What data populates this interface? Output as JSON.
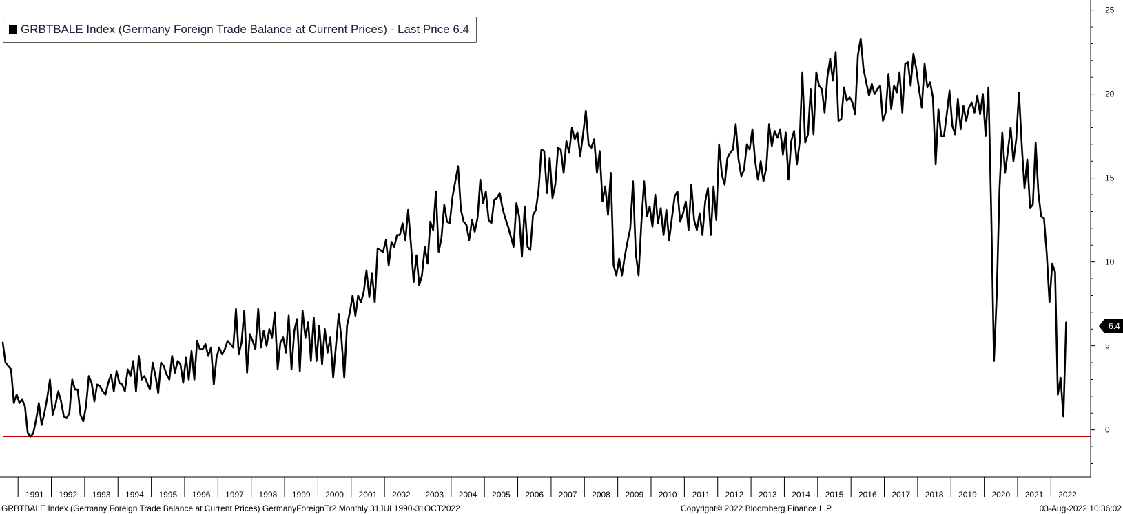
{
  "legend": {
    "label": "GRBTBALE Index (Germany Foreign Trade Balance at Current Prices) - Last Price 6.4",
    "color": "#000000"
  },
  "last_price_tag": "6.4",
  "footer": {
    "left": "GRBTBALE Index (Germany Foreign Trade Balance at Current Prices) GermanyForeignTr2  Monthly 31JUL1990-31OCT2022",
    "center": "Copyright© 2022 Bloomberg Finance L.P.",
    "right": "03-Aug-2022 10:36:02"
  },
  "chart_data": {
    "type": "line",
    "x_start": "1990-07",
    "frequency": "monthly",
    "ylim": [
      -2.8,
      25.6
    ],
    "yticks": [
      0,
      5,
      10,
      15,
      20,
      25
    ],
    "ytick_labels": [
      "0",
      "5",
      "10",
      "15",
      "20",
      "25"
    ],
    "xtick_labels": [
      "1991",
      "1992",
      "1993",
      "1994",
      "1995",
      "1996",
      "1997",
      "1998",
      "1999",
      "2000",
      "2001",
      "2002",
      "2003",
      "2004",
      "2005",
      "2006",
      "2007",
      "2008",
      "2009",
      "2010",
      "2011",
      "2012",
      "2013",
      "2014",
      "2015",
      "2016",
      "2017",
      "2018",
      "2019",
      "2020",
      "2021",
      "2022"
    ],
    "reference_line": {
      "y": -0.4,
      "color": "#c00000"
    },
    "series": [
      {
        "color": "#000000",
        "values": [
          5.2,
          4.0,
          3.8,
          3.6,
          1.6,
          2.1,
          1.6,
          1.8,
          1.4,
          -0.2,
          -0.4,
          -0.2,
          0.6,
          1.6,
          0.3,
          1.0,
          1.9,
          3.0,
          0.9,
          1.5,
          2.3,
          1.7,
          0.8,
          0.7,
          1.0,
          3.0,
          2.4,
          2.4,
          0.9,
          0.5,
          1.4,
          3.2,
          2.8,
          1.7,
          2.7,
          2.6,
          2.3,
          2.1,
          2.8,
          3.3,
          2.3,
          3.5,
          2.8,
          2.7,
          2.3,
          3.6,
          3.2,
          4.1,
          2.3,
          4.4,
          3.0,
          3.2,
          2.8,
          2.4,
          4.0,
          3.2,
          2.2,
          4.0,
          3.8,
          3.3,
          3.0,
          4.4,
          3.4,
          4.1,
          3.9,
          2.8,
          4.3,
          3.0,
          4.7,
          3.0,
          5.3,
          4.8,
          4.8,
          5.1,
          4.4,
          4.9,
          2.7,
          4.3,
          4.9,
          4.5,
          4.8,
          5.3,
          5.1,
          4.9,
          7.2,
          4.5,
          5.2,
          7.1,
          3.4,
          5.7,
          5.3,
          4.8,
          7.2,
          4.9,
          5.9,
          5.0,
          6.0,
          5.5,
          7.0,
          3.6,
          5.2,
          5.5,
          4.6,
          6.8,
          3.6,
          5.9,
          6.6,
          3.5,
          7.1,
          5.5,
          6.4,
          4.1,
          6.7,
          4.1,
          6.2,
          3.9,
          6.0,
          4.6,
          5.5,
          3.1,
          5.0,
          6.9,
          5.4,
          3.1,
          6.2,
          7.0,
          8.0,
          6.8,
          8.0,
          7.6,
          8.2,
          9.5,
          7.9,
          9.3,
          7.6,
          10.8,
          10.7,
          10.6,
          11.3,
          9.8,
          11.2,
          10.9,
          11.6,
          11.6,
          12.3,
          11.3,
          13.1,
          11.1,
          8.8,
          10.4,
          8.6,
          9.2,
          10.9,
          9.9,
          12.4,
          11.9,
          14.2,
          10.6,
          11.4,
          13.4,
          12.4,
          12.3,
          13.9,
          14.8,
          15.7,
          13.1,
          12.4,
          12.2,
          11.3,
          12.5,
          11.8,
          12.6,
          14.9,
          13.5,
          14.2,
          12.5,
          12.3,
          13.7,
          13.8,
          14.1,
          13.2,
          12.6,
          12.1,
          11.5,
          10.9,
          13.5,
          12.7,
          10.3,
          13.3,
          10.9,
          10.7,
          12.8,
          13.1,
          14.3,
          16.7,
          16.6,
          14.1,
          16.2,
          13.8,
          14.6,
          16.8,
          16.7,
          15.3,
          17.2,
          16.5,
          18.0,
          17.3,
          17.7,
          16.3,
          17.6,
          19.0,
          17.0,
          16.8,
          17.3,
          15.3,
          16.6,
          13.6,
          14.5,
          12.8,
          15.3,
          9.8,
          9.2,
          10.2,
          9.2,
          10.3,
          11.2,
          12.0,
          14.8,
          10.5,
          9.2,
          12.3,
          14.8,
          12.7,
          13.3,
          12.1,
          14.0,
          12.3,
          13.2,
          11.6,
          13.1,
          11.3,
          12.6,
          13.9,
          14.2,
          12.4,
          12.9,
          13.6,
          11.9,
          14.6,
          12.5,
          11.9,
          12.9,
          11.6,
          13.6,
          14.4,
          11.6,
          14.5,
          12.5,
          17.0,
          15.2,
          14.6,
          16.2,
          16.5,
          16.7,
          18.2,
          16.1,
          15.1,
          15.5,
          17.0,
          16.7,
          17.9,
          16.0,
          14.9,
          16.0,
          14.8,
          15.6,
          18.2,
          16.9,
          17.8,
          17.4,
          17.9,
          16.4,
          17.7,
          14.9,
          17.2,
          17.8,
          15.8,
          17.1,
          21.3,
          17.1,
          17.6,
          20.3,
          17.6,
          21.3,
          20.5,
          20.3,
          18.9,
          21.0,
          22.1,
          20.8,
          22.5,
          18.4,
          18.5,
          20.4,
          19.6,
          19.8,
          19.5,
          18.8,
          22.3,
          23.3,
          21.5,
          20.7,
          19.9,
          20.6,
          20.0,
          20.3,
          20.5,
          18.4,
          18.9,
          21.2,
          19.1,
          20.5,
          20.1,
          21.3,
          18.9,
          21.8,
          21.9,
          20.5,
          22.4,
          21.5,
          20.3,
          19.2,
          21.8,
          20.4,
          20.7,
          19.8,
          15.8,
          19.1,
          17.5,
          17.5,
          18.8,
          20.2,
          18.1,
          17.6,
          19.7,
          17.9,
          19.3,
          18.4,
          19.2,
          19.5,
          18.9,
          19.9,
          18.8,
          20.0,
          17.5,
          20.4,
          13.0,
          4.1,
          8.0,
          14.4,
          17.7,
          15.3,
          16.6,
          18.0,
          16.0,
          17.3,
          20.1,
          17.0,
          14.4,
          16.1,
          13.2,
          13.4,
          17.1,
          14.1,
          12.7,
          12.6,
          10.5,
          7.6,
          9.9,
          9.4,
          2.1,
          3.1,
          0.8,
          6.4
        ]
      }
    ]
  }
}
